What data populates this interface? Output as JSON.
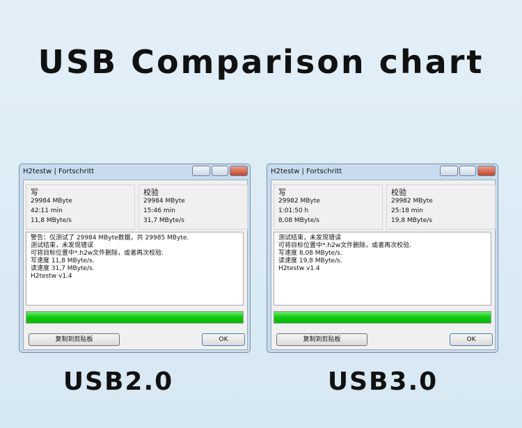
{
  "title": "USB Comparison chart",
  "panels": [
    {
      "label": "USB2.0",
      "window_title": "H2testw | Fortschritt",
      "write": {
        "heading": "写",
        "lines": [
          "29984 MByte",
          "42:11 min",
          "11,8 MByte/s"
        ]
      },
      "verify": {
        "heading": "校验",
        "lines": [
          "29984 MByte",
          "15:46 min",
          "31,7 MByte/s"
        ]
      },
      "log": [
        "警告：仅测试了 29984 MByte数据，共 29985 MByte.",
        "测试结束，未发现错误",
        "可将目标位置中*.h2w文件删除，或者再次校验.",
        "写速度 11,8 MByte/s.",
        "读速度 31,7 MByte/s.",
        "H2testw v1.4"
      ],
      "copy_button": "复制到剪贴板",
      "ok_button": "OK"
    },
    {
      "label": "USB3.0",
      "window_title": "H2testw | Fortschritt",
      "write": {
        "heading": "写",
        "lines": [
          "29982 MByte",
          "1:01:50 h",
          "8,08 MByte/s"
        ]
      },
      "verify": {
        "heading": "校验",
        "lines": [
          "29982 MByte",
          "25:18 min",
          "19,8 MByte/s"
        ]
      },
      "log": [
        "测试结束，未发现错误",
        "可将目标位置中*.h2w文件删除，或者再次校验.",
        "写速度 8,08 MByte/s.",
        "读速度 19,8 MByte/s.",
        "H2testw v1.4"
      ],
      "copy_button": "复制到剪贴板",
      "ok_button": "OK"
    }
  ]
}
